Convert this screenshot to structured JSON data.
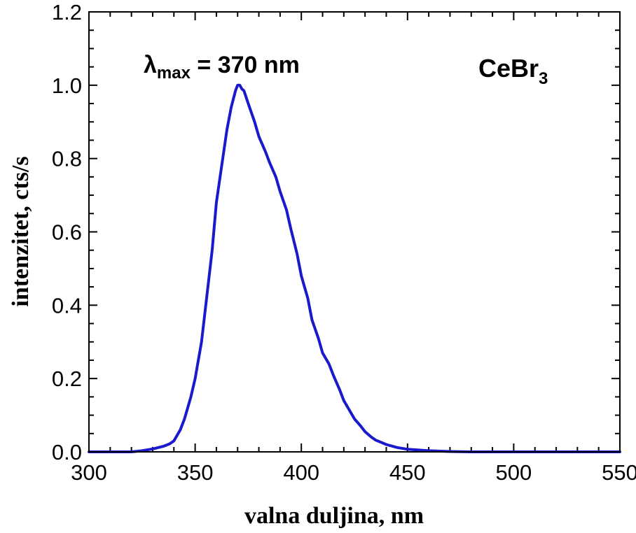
{
  "chart_data": {
    "type": "line",
    "xlabel": "valna duljina, nm",
    "ylabel": "intenzitet, cts/s",
    "xlim": [
      300,
      550
    ],
    "ylim": [
      0.0,
      1.2
    ],
    "x_ticks": [
      "300",
      "350",
      "400",
      "450",
      "500",
      "550"
    ],
    "y_ticks": [
      "0.0",
      "0.2",
      "0.4",
      "0.6",
      "0.8",
      "1.0",
      "1.2"
    ],
    "grid": false,
    "annotations": {
      "peak_symbol": "λ",
      "peak_subscript": "max",
      "peak_value": " = 370 nm",
      "compound": "CeBr",
      "compound_subscript": "3"
    },
    "series": [
      {
        "color": "#1a1acc",
        "x": [
          300,
          320,
          325,
          330,
          335,
          338,
          340,
          343,
          345,
          348,
          350,
          353,
          355,
          358,
          360,
          363,
          365,
          367,
          369,
          370,
          371,
          372,
          373,
          375,
          378,
          380,
          383,
          385,
          388,
          390,
          393,
          395,
          398,
          400,
          403,
          405,
          408,
          410,
          413,
          415,
          418,
          420,
          423,
          425,
          428,
          430,
          433,
          435,
          438,
          440,
          445,
          450,
          460,
          470,
          480,
          500,
          520,
          550
        ],
        "y": [
          0.0,
          0.0,
          0.003,
          0.008,
          0.015,
          0.022,
          0.03,
          0.06,
          0.09,
          0.15,
          0.2,
          0.3,
          0.4,
          0.55,
          0.68,
          0.8,
          0.88,
          0.94,
          0.985,
          1.0,
          1.0,
          0.99,
          0.985,
          0.95,
          0.9,
          0.86,
          0.82,
          0.79,
          0.75,
          0.71,
          0.66,
          0.61,
          0.54,
          0.48,
          0.42,
          0.36,
          0.31,
          0.27,
          0.24,
          0.21,
          0.17,
          0.14,
          0.11,
          0.09,
          0.07,
          0.055,
          0.04,
          0.032,
          0.025,
          0.02,
          0.012,
          0.007,
          0.003,
          0.001,
          0.0,
          0.0,
          0.0,
          0.0
        ]
      }
    ]
  }
}
